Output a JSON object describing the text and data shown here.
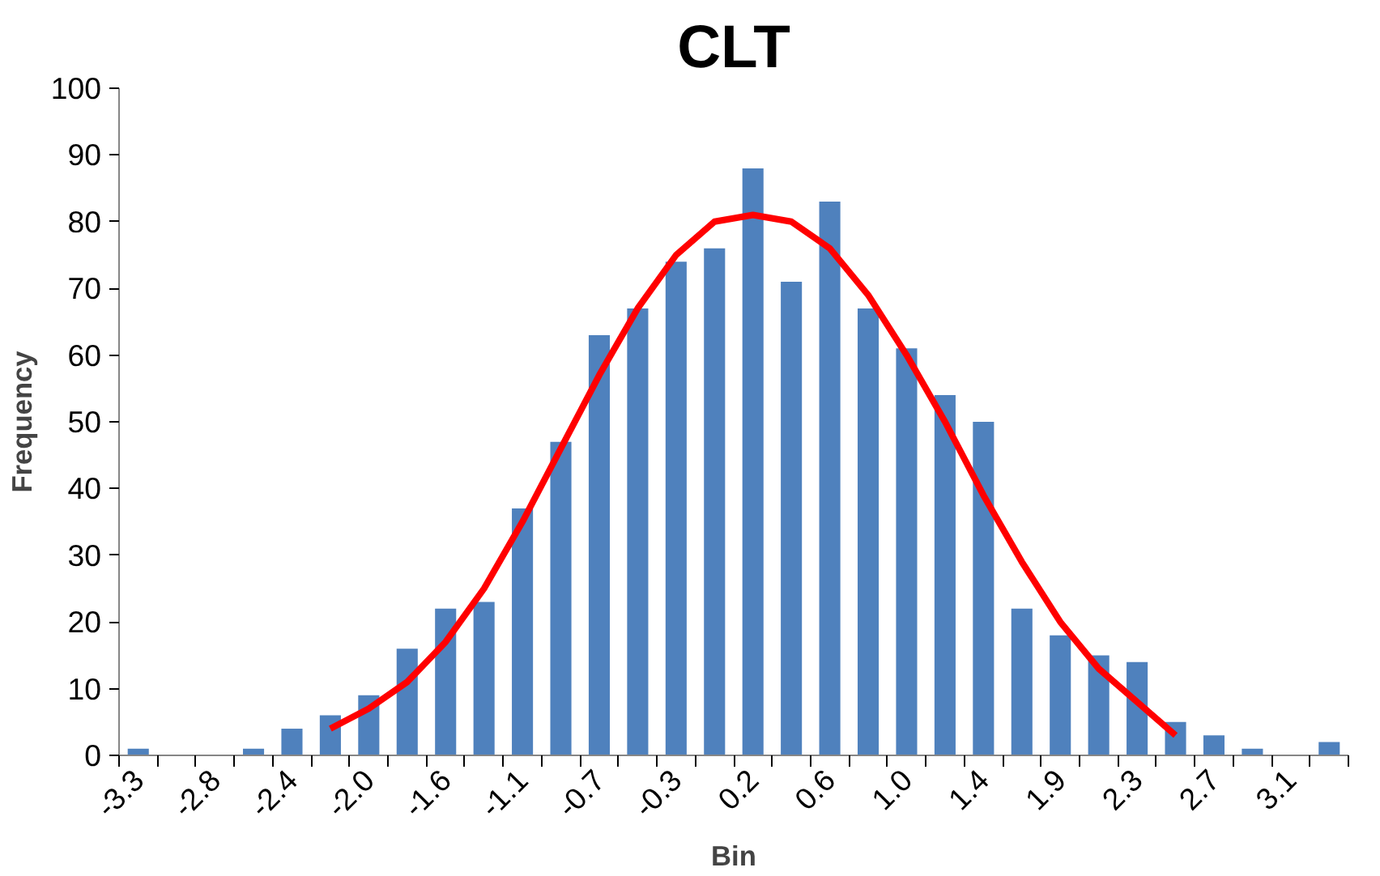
{
  "chart_data": {
    "type": "bar",
    "title": "CLT",
    "xlabel": "Bin",
    "ylabel": "Frequency",
    "categories": [
      "-3.3",
      null,
      "-2.8",
      null,
      "-2.4",
      null,
      "-2.0",
      null,
      "-1.6",
      null,
      "-1.1",
      null,
      "-0.7",
      null,
      "-0.3",
      null,
      "0.2",
      null,
      "0.6",
      null,
      "1.0",
      null,
      "1.4",
      null,
      "1.9",
      null,
      "2.3",
      null,
      "2.7",
      null,
      "3.1",
      null
    ],
    "series": [
      {
        "color": "#4f81bd",
        "values": [
          1,
          0,
          0,
          1,
          4,
          6,
          9,
          16,
          22,
          23,
          37,
          47,
          63,
          67,
          74,
          76,
          88,
          71,
          83,
          67,
          61,
          54,
          50,
          22,
          18,
          15,
          14,
          5,
          3,
          1,
          0,
          2
        ]
      },
      {
        "type": "line",
        "color": "#ff0000",
        "values": [
          null,
          null,
          null,
          null,
          null,
          4,
          7,
          11,
          17,
          25,
          35,
          46,
          57,
          67,
          75,
          80,
          81,
          80,
          76,
          69,
          60,
          50,
          39,
          29,
          20,
          13,
          8,
          3,
          null,
          null,
          null,
          null
        ]
      }
    ],
    "ylim": [
      0,
      100
    ],
    "yticks": [
      0,
      10,
      20,
      30,
      40,
      50,
      60,
      70,
      80,
      90,
      100
    ],
    "grid": false
  }
}
